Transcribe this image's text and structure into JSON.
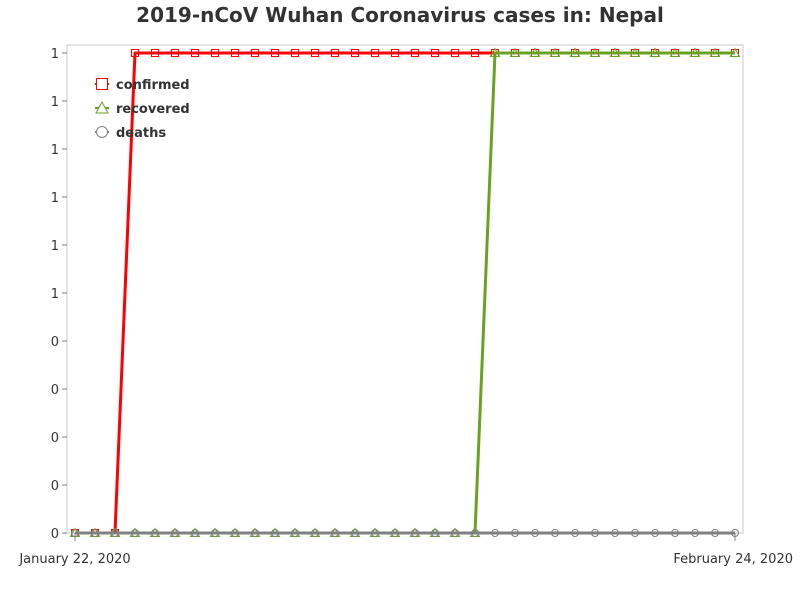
{
  "chart_data": {
    "type": "line",
    "title": "2019-nCoV Wuhan Coronavirus cases in: Nepal",
    "xlabel": "",
    "ylabel": "",
    "x": [
      "2020-01-22",
      "2020-01-23",
      "2020-01-24",
      "2020-01-25",
      "2020-01-26",
      "2020-01-27",
      "2020-01-28",
      "2020-01-29",
      "2020-01-30",
      "2020-01-31",
      "2020-02-01",
      "2020-02-02",
      "2020-02-03",
      "2020-02-04",
      "2020-02-05",
      "2020-02-06",
      "2020-02-07",
      "2020-02-08",
      "2020-02-09",
      "2020-02-10",
      "2020-02-11",
      "2020-02-12",
      "2020-02-13",
      "2020-02-14",
      "2020-02-15",
      "2020-02-16",
      "2020-02-17",
      "2020-02-18",
      "2020-02-19",
      "2020-02-20",
      "2020-02-21",
      "2020-02-22",
      "2020-02-23",
      "2020-02-24"
    ],
    "x_tick_labels": [
      "January 22, 2020",
      "February 24, 2020"
    ],
    "y_tick_labels": [
      "0",
      "0",
      "0",
      "0",
      "0",
      "1",
      "1",
      "1",
      "1",
      "1",
      "1"
    ],
    "ylim": [
      0,
      1
    ],
    "grid": false,
    "legend_position": "top-left",
    "series": [
      {
        "name": "confirmed",
        "color": "#ff0000",
        "marker": "square",
        "values": [
          0,
          0,
          0,
          1,
          1,
          1,
          1,
          1,
          1,
          1,
          1,
          1,
          1,
          1,
          1,
          1,
          1,
          1,
          1,
          1,
          1,
          1,
          1,
          1,
          1,
          1,
          1,
          1,
          1,
          1,
          1,
          1,
          1,
          1
        ]
      },
      {
        "name": "recovered",
        "color": "#6aa121",
        "marker": "triangle",
        "values": [
          0,
          0,
          0,
          0,
          0,
          0,
          0,
          0,
          0,
          0,
          0,
          0,
          0,
          0,
          0,
          0,
          0,
          0,
          0,
          0,
          0,
          1,
          1,
          1,
          1,
          1,
          1,
          1,
          1,
          1,
          1,
          1,
          1,
          1
        ]
      },
      {
        "name": "deaths",
        "color": "#808080",
        "marker": "circle",
        "values": [
          0,
          0,
          0,
          0,
          0,
          0,
          0,
          0,
          0,
          0,
          0,
          0,
          0,
          0,
          0,
          0,
          0,
          0,
          0,
          0,
          0,
          0,
          0,
          0,
          0,
          0,
          0,
          0,
          0,
          0,
          0,
          0,
          0,
          0
        ]
      }
    ]
  }
}
